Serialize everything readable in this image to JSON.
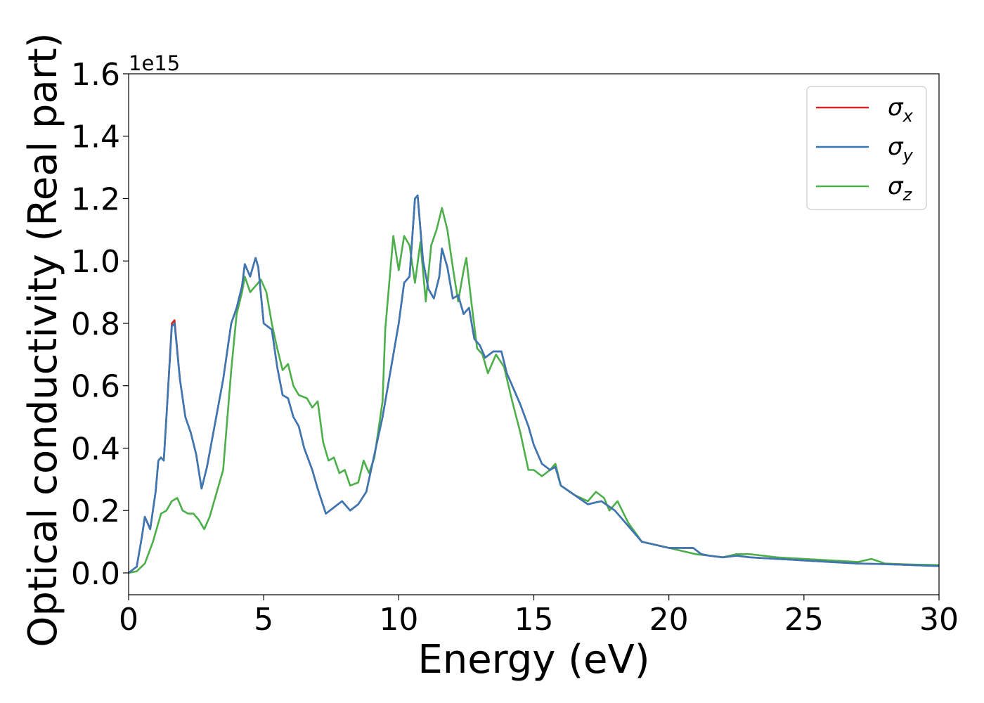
{
  "chart_data": {
    "type": "line",
    "xlabel": "Energy (eV)",
    "ylabel": "Optical conductivity (Real part)",
    "y_offset_label": "1e15",
    "xlim": [
      0,
      30
    ],
    "ylim": [
      -0.07,
      1.6
    ],
    "xticks": [
      0,
      5,
      10,
      15,
      20,
      25,
      30
    ],
    "yticks": [
      0.0,
      0.2,
      0.4,
      0.6,
      0.8,
      1.0,
      1.2,
      1.4,
      1.6
    ],
    "grid": false,
    "legend_position": "top-right",
    "series": [
      {
        "name": "σx",
        "base": "σ",
        "sub": "x",
        "color": "#d62728",
        "points": [
          [
            0,
            0
          ],
          [
            0.3,
            0.02
          ],
          [
            0.5,
            0.12
          ],
          [
            0.6,
            0.18
          ],
          [
            0.8,
            0.14
          ],
          [
            1.0,
            0.26
          ],
          [
            1.1,
            0.36
          ],
          [
            1.2,
            0.37
          ],
          [
            1.3,
            0.36
          ],
          [
            1.4,
            0.5
          ],
          [
            1.6,
            0.8
          ],
          [
            1.7,
            0.81
          ],
          [
            1.9,
            0.62
          ],
          [
            2.1,
            0.5
          ],
          [
            2.3,
            0.45
          ],
          [
            2.5,
            0.38
          ],
          [
            2.7,
            0.27
          ],
          [
            2.9,
            0.34
          ],
          [
            3.2,
            0.48
          ],
          [
            3.5,
            0.62
          ],
          [
            3.8,
            0.8
          ],
          [
            4.0,
            0.85
          ],
          [
            4.2,
            0.92
          ],
          [
            4.3,
            0.99
          ],
          [
            4.5,
            0.95
          ],
          [
            4.7,
            1.01
          ],
          [
            4.8,
            0.98
          ],
          [
            5.0,
            0.8
          ],
          [
            5.3,
            0.78
          ],
          [
            5.5,
            0.66
          ],
          [
            5.7,
            0.57
          ],
          [
            5.9,
            0.56
          ],
          [
            6.1,
            0.5
          ],
          [
            6.3,
            0.47
          ],
          [
            6.5,
            0.4
          ],
          [
            6.8,
            0.33
          ],
          [
            7.0,
            0.27
          ],
          [
            7.3,
            0.19
          ],
          [
            7.6,
            0.21
          ],
          [
            7.9,
            0.23
          ],
          [
            8.2,
            0.2
          ],
          [
            8.5,
            0.22
          ],
          [
            8.8,
            0.26
          ],
          [
            9.1,
            0.38
          ],
          [
            9.4,
            0.5
          ],
          [
            9.7,
            0.65
          ],
          [
            10.0,
            0.8
          ],
          [
            10.2,
            0.93
          ],
          [
            10.4,
            0.95
          ],
          [
            10.6,
            1.2
          ],
          [
            10.7,
            1.21
          ],
          [
            10.9,
            1.0
          ],
          [
            11.1,
            0.91
          ],
          [
            11.3,
            0.88
          ],
          [
            11.5,
            0.95
          ],
          [
            11.6,
            1.04
          ],
          [
            11.8,
            0.98
          ],
          [
            12.0,
            0.88
          ],
          [
            12.2,
            0.89
          ],
          [
            12.4,
            0.83
          ],
          [
            12.6,
            0.85
          ],
          [
            12.8,
            0.75
          ],
          [
            13.0,
            0.73
          ],
          [
            13.2,
            0.69
          ],
          [
            13.5,
            0.71
          ],
          [
            13.8,
            0.71
          ],
          [
            14.0,
            0.64
          ],
          [
            14.2,
            0.6
          ],
          [
            14.5,
            0.54
          ],
          [
            14.8,
            0.47
          ],
          [
            15.0,
            0.41
          ],
          [
            15.3,
            0.35
          ],
          [
            15.6,
            0.33
          ],
          [
            15.8,
            0.34
          ],
          [
            16.0,
            0.28
          ],
          [
            16.5,
            0.25
          ],
          [
            17.0,
            0.22
          ],
          [
            17.5,
            0.23
          ],
          [
            18.0,
            0.2
          ],
          [
            18.5,
            0.15
          ],
          [
            19.0,
            0.1
          ],
          [
            19.5,
            0.09
          ],
          [
            20.0,
            0.08
          ],
          [
            20.5,
            0.08
          ],
          [
            20.9,
            0.08
          ],
          [
            21.2,
            0.06
          ],
          [
            21.5,
            0.055
          ],
          [
            22.0,
            0.05
          ],
          [
            22.5,
            0.055
          ],
          [
            23.0,
            0.05
          ],
          [
            24.0,
            0.045
          ],
          [
            25.0,
            0.04
          ],
          [
            26.0,
            0.035
          ],
          [
            27.0,
            0.03
          ],
          [
            28.0,
            0.028
          ],
          [
            29.0,
            0.025
          ],
          [
            30.0,
            0.022
          ]
        ]
      },
      {
        "name": "σy",
        "base": "σ",
        "sub": "y",
        "color": "#3a78b5",
        "points": [
          [
            0,
            0
          ],
          [
            0.3,
            0.02
          ],
          [
            0.5,
            0.12
          ],
          [
            0.6,
            0.18
          ],
          [
            0.8,
            0.14
          ],
          [
            1.0,
            0.26
          ],
          [
            1.1,
            0.36
          ],
          [
            1.2,
            0.37
          ],
          [
            1.3,
            0.36
          ],
          [
            1.4,
            0.5
          ],
          [
            1.6,
            0.79
          ],
          [
            1.7,
            0.8
          ],
          [
            1.9,
            0.62
          ],
          [
            2.1,
            0.5
          ],
          [
            2.3,
            0.45
          ],
          [
            2.5,
            0.38
          ],
          [
            2.7,
            0.27
          ],
          [
            2.9,
            0.34
          ],
          [
            3.2,
            0.48
          ],
          [
            3.5,
            0.62
          ],
          [
            3.8,
            0.8
          ],
          [
            4.0,
            0.85
          ],
          [
            4.2,
            0.92
          ],
          [
            4.3,
            0.99
          ],
          [
            4.5,
            0.95
          ],
          [
            4.7,
            1.01
          ],
          [
            4.8,
            0.98
          ],
          [
            5.0,
            0.8
          ],
          [
            5.3,
            0.78
          ],
          [
            5.5,
            0.66
          ],
          [
            5.7,
            0.57
          ],
          [
            5.9,
            0.56
          ],
          [
            6.1,
            0.5
          ],
          [
            6.3,
            0.47
          ],
          [
            6.5,
            0.4
          ],
          [
            6.8,
            0.33
          ],
          [
            7.0,
            0.27
          ],
          [
            7.3,
            0.19
          ],
          [
            7.6,
            0.21
          ],
          [
            7.9,
            0.23
          ],
          [
            8.2,
            0.2
          ],
          [
            8.5,
            0.22
          ],
          [
            8.8,
            0.26
          ],
          [
            9.1,
            0.38
          ],
          [
            9.4,
            0.5
          ],
          [
            9.7,
            0.65
          ],
          [
            10.0,
            0.8
          ],
          [
            10.2,
            0.93
          ],
          [
            10.4,
            0.95
          ],
          [
            10.6,
            1.2
          ],
          [
            10.7,
            1.21
          ],
          [
            10.9,
            1.0
          ],
          [
            11.1,
            0.91
          ],
          [
            11.3,
            0.88
          ],
          [
            11.5,
            0.95
          ],
          [
            11.6,
            1.04
          ],
          [
            11.8,
            0.98
          ],
          [
            12.0,
            0.88
          ],
          [
            12.2,
            0.89
          ],
          [
            12.4,
            0.83
          ],
          [
            12.6,
            0.85
          ],
          [
            12.8,
            0.75
          ],
          [
            13.0,
            0.73
          ],
          [
            13.2,
            0.69
          ],
          [
            13.5,
            0.71
          ],
          [
            13.8,
            0.71
          ],
          [
            14.0,
            0.64
          ],
          [
            14.2,
            0.6
          ],
          [
            14.5,
            0.54
          ],
          [
            14.8,
            0.47
          ],
          [
            15.0,
            0.41
          ],
          [
            15.3,
            0.35
          ],
          [
            15.6,
            0.33
          ],
          [
            15.8,
            0.34
          ],
          [
            16.0,
            0.28
          ],
          [
            16.5,
            0.25
          ],
          [
            17.0,
            0.22
          ],
          [
            17.5,
            0.23
          ],
          [
            18.0,
            0.2
          ],
          [
            18.5,
            0.15
          ],
          [
            19.0,
            0.1
          ],
          [
            19.5,
            0.09
          ],
          [
            20.0,
            0.08
          ],
          [
            20.5,
            0.08
          ],
          [
            20.9,
            0.08
          ],
          [
            21.2,
            0.06
          ],
          [
            21.5,
            0.055
          ],
          [
            22.0,
            0.05
          ],
          [
            22.5,
            0.055
          ],
          [
            23.0,
            0.05
          ],
          [
            24.0,
            0.045
          ],
          [
            25.0,
            0.04
          ],
          [
            26.0,
            0.035
          ],
          [
            27.0,
            0.03
          ],
          [
            28.0,
            0.028
          ],
          [
            29.0,
            0.025
          ],
          [
            30.0,
            0.022
          ]
        ]
      },
      {
        "name": "σz",
        "base": "σ",
        "sub": "z",
        "color": "#4daf4a",
        "points": [
          [
            0,
            0
          ],
          [
            0.3,
            0.005
          ],
          [
            0.6,
            0.03
          ],
          [
            0.9,
            0.1
          ],
          [
            1.2,
            0.19
          ],
          [
            1.4,
            0.2
          ],
          [
            1.6,
            0.23
          ],
          [
            1.8,
            0.24
          ],
          [
            2.0,
            0.2
          ],
          [
            2.2,
            0.19
          ],
          [
            2.4,
            0.19
          ],
          [
            2.6,
            0.17
          ],
          [
            2.8,
            0.14
          ],
          [
            3.0,
            0.18
          ],
          [
            3.2,
            0.24
          ],
          [
            3.5,
            0.33
          ],
          [
            3.8,
            0.65
          ],
          [
            4.0,
            0.83
          ],
          [
            4.2,
            0.9
          ],
          [
            4.3,
            0.95
          ],
          [
            4.5,
            0.9
          ],
          [
            4.7,
            0.92
          ],
          [
            4.9,
            0.94
          ],
          [
            5.1,
            0.9
          ],
          [
            5.3,
            0.8
          ],
          [
            5.5,
            0.72
          ],
          [
            5.7,
            0.65
          ],
          [
            5.9,
            0.67
          ],
          [
            6.1,
            0.6
          ],
          [
            6.3,
            0.57
          ],
          [
            6.6,
            0.56
          ],
          [
            6.8,
            0.53
          ],
          [
            7.0,
            0.55
          ],
          [
            7.2,
            0.42
          ],
          [
            7.4,
            0.36
          ],
          [
            7.6,
            0.37
          ],
          [
            7.8,
            0.32
          ],
          [
            8.0,
            0.33
          ],
          [
            8.2,
            0.28
          ],
          [
            8.5,
            0.29
          ],
          [
            8.7,
            0.36
          ],
          [
            8.9,
            0.32
          ],
          [
            9.1,
            0.37
          ],
          [
            9.4,
            0.55
          ],
          [
            9.5,
            0.78
          ],
          [
            9.8,
            1.08
          ],
          [
            10.0,
            0.97
          ],
          [
            10.2,
            1.08
          ],
          [
            10.4,
            1.05
          ],
          [
            10.6,
            0.93
          ],
          [
            10.8,
            1.06
          ],
          [
            11.0,
            0.87
          ],
          [
            11.2,
            1.05
          ],
          [
            11.4,
            1.1
          ],
          [
            11.6,
            1.17
          ],
          [
            11.8,
            1.1
          ],
          [
            12.0,
            0.98
          ],
          [
            12.2,
            0.87
          ],
          [
            12.4,
            0.97
          ],
          [
            12.5,
            1.01
          ],
          [
            12.7,
            0.86
          ],
          [
            12.9,
            0.72
          ],
          [
            13.1,
            0.7
          ],
          [
            13.3,
            0.64
          ],
          [
            13.6,
            0.7
          ],
          [
            13.9,
            0.66
          ],
          [
            14.2,
            0.55
          ],
          [
            14.5,
            0.45
          ],
          [
            14.8,
            0.33
          ],
          [
            15.0,
            0.33
          ],
          [
            15.3,
            0.31
          ],
          [
            15.6,
            0.33
          ],
          [
            15.8,
            0.35
          ],
          [
            16.0,
            0.28
          ],
          [
            16.5,
            0.25
          ],
          [
            17.0,
            0.23
          ],
          [
            17.3,
            0.26
          ],
          [
            17.6,
            0.24
          ],
          [
            17.8,
            0.2
          ],
          [
            18.1,
            0.23
          ],
          [
            18.5,
            0.16
          ],
          [
            19.0,
            0.1
          ],
          [
            19.5,
            0.09
          ],
          [
            20.0,
            0.08
          ],
          [
            20.5,
            0.07
          ],
          [
            21.0,
            0.06
          ],
          [
            21.5,
            0.055
          ],
          [
            22.0,
            0.05
          ],
          [
            22.5,
            0.06
          ],
          [
            23.0,
            0.06
          ],
          [
            23.5,
            0.055
          ],
          [
            24.0,
            0.05
          ],
          [
            25.0,
            0.045
          ],
          [
            26.0,
            0.04
          ],
          [
            27.0,
            0.035
          ],
          [
            27.5,
            0.045
          ],
          [
            28.0,
            0.03
          ],
          [
            29.0,
            0.027
          ],
          [
            30.0,
            0.025
          ]
        ]
      }
    ]
  }
}
